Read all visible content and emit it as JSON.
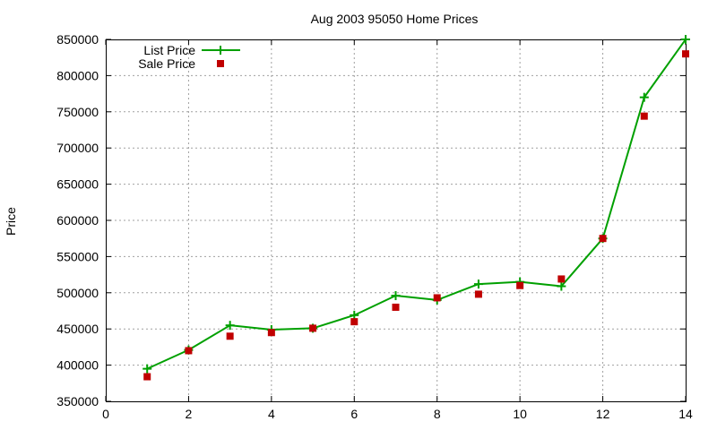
{
  "chart_data": {
    "type": "line",
    "title": "Aug 2003 95050 Home Prices",
    "xlabel": "",
    "ylabel": "Price",
    "xlim": [
      0,
      14
    ],
    "ylim": [
      350000,
      850000
    ],
    "xticks": [
      "0",
      "2",
      "4",
      "6",
      "8",
      "10",
      "12",
      "14"
    ],
    "yticks": [
      "350000",
      "400000",
      "450000",
      "500000",
      "550000",
      "600000",
      "650000",
      "700000",
      "750000",
      "800000",
      "850000"
    ],
    "grid": true,
    "legend_position": "top-left",
    "series": [
      {
        "name": "List Price",
        "style": "line-points",
        "marker": "plus",
        "color": "#00a000",
        "x": [
          1,
          2,
          3,
          4,
          5,
          6,
          7,
          8,
          9,
          10,
          11,
          12,
          13,
          14
        ],
        "y": [
          395000,
          421000,
          455000,
          449000,
          451000,
          469000,
          496000,
          490000,
          512000,
          515000,
          509000,
          575000,
          770000,
          850000
        ]
      },
      {
        "name": "Sale Price",
        "style": "points",
        "marker": "square",
        "color": "#c00000",
        "x": [
          1,
          2,
          3,
          4,
          5,
          6,
          7,
          8,
          9,
          10,
          11,
          12,
          13,
          14
        ],
        "y": [
          384000,
          420000,
          440000,
          445000,
          451000,
          460000,
          480000,
          493000,
          498000,
          510000,
          519000,
          575000,
          744000,
          830000
        ]
      }
    ]
  }
}
